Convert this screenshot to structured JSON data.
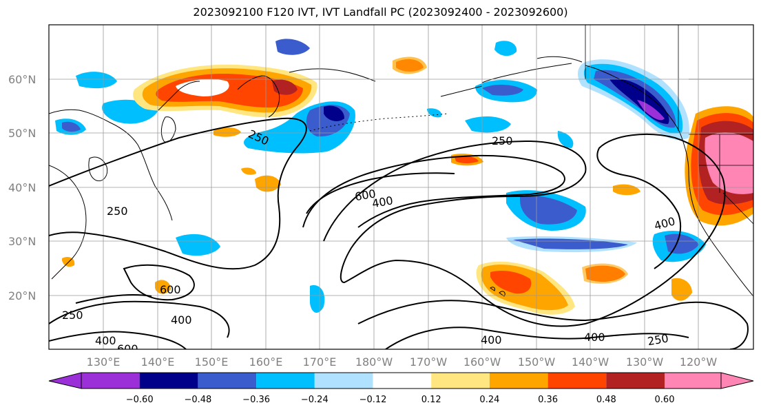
{
  "title": "2023092100 F120 IVT, IVT Landfall PC (2023092400 - 2023092600)",
  "colors": {
    "neg_060_plus": "#9b30d9",
    "neg_048": "#00008b",
    "neg_036": "#3a5ccc",
    "neg_024": "#00bfff",
    "neg_012": "#b0e2ff",
    "neutral": "#ffffff",
    "pos_012": "#ffe680",
    "pos_024": "#ffa500",
    "pos_036": "#ff4500",
    "pos_048": "#b22222",
    "pos_060_plus": "#ff85b5"
  },
  "map": {
    "lat_labels": [
      "60°N",
      "50°N",
      "40°N",
      "30°N",
      "20°N"
    ],
    "lon_labels": [
      "130°E",
      "140°E",
      "150°E",
      "160°E",
      "170°E",
      "180°W",
      "170°W",
      "160°W",
      "150°W",
      "140°W",
      "130°W",
      "120°W"
    ],
    "contour_labels": [
      {
        "id": "c250a",
        "text": "250"
      },
      {
        "id": "c250b",
        "text": "250"
      },
      {
        "id": "c600a",
        "text": "600"
      },
      {
        "id": "c400a",
        "text": "400"
      },
      {
        "id": "c250c",
        "text": "250"
      },
      {
        "id": "c400b",
        "text": "400"
      },
      {
        "id": "c600b",
        "text": "600"
      },
      {
        "id": "c250d",
        "text": "250"
      },
      {
        "id": "c400c",
        "text": "400"
      },
      {
        "id": "c400d",
        "text": "400"
      },
      {
        "id": "c600c",
        "text": "600"
      },
      {
        "id": "c400e",
        "text": "400"
      },
      {
        "id": "c400f",
        "text": "400"
      },
      {
        "id": "c250e",
        "text": "250"
      }
    ]
  },
  "colorbar": {
    "labels": [
      "−0.60",
      "−0.48",
      "−0.36",
      "−0.24",
      "−0.12",
      "0.12",
      "0.24",
      "0.36",
      "0.48",
      "0.60"
    ]
  }
}
